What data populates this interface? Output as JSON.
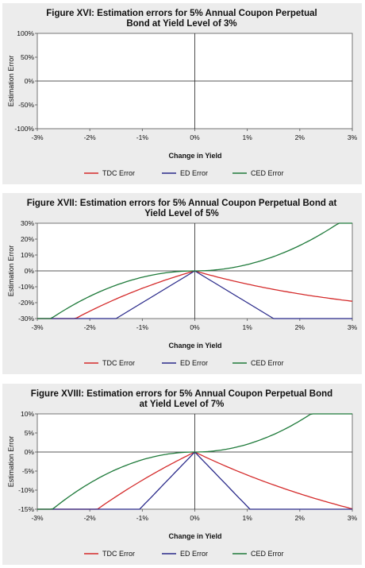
{
  "chart_data": [
    {
      "type": "line",
      "title_lines": [
        "Figure XVI: Estimation errors for 5% Annual Coupon Perpetual",
        "Bond at Yield Level of 3%"
      ],
      "xlabel": "Change in Yield",
      "ylabel": "Estimation Error",
      "x_ticks": [
        "-3%",
        "-2%",
        "-1%",
        "0%",
        "1%",
        "2%",
        "3%"
      ],
      "y_ticks": [
        "100%",
        "50%",
        "0%",
        "-50%",
        "-100%"
      ],
      "xlim": [
        -3,
        3
      ],
      "ylim": [
        -100,
        100
      ],
      "yield_level": 3,
      "x": [
        -3,
        -2.75,
        -2.5,
        -2.25,
        -2,
        -1.75,
        -1.5,
        -1.25,
        -1,
        -0.75,
        -0.5,
        -0.25,
        0,
        0.25,
        0.5,
        0.75,
        1,
        1.25,
        1.5,
        1.75,
        2,
        2.25,
        2.5,
        2.75,
        3
      ],
      "series": [
        {
          "name": "TDC Error",
          "color": "#d42a2a"
        },
        {
          "name": "ED Error",
          "color": "#2a2a8a"
        },
        {
          "name": "CED Error",
          "color": "#1e7a3a"
        }
      ]
    },
    {
      "type": "line",
      "title_lines": [
        "Figure XVII: Estimation errors for 5% Annual Coupon Perpetual Bond at",
        "Yield Level of 5%"
      ],
      "xlabel": "Change in Yield",
      "ylabel": "Estimation Error",
      "x_ticks": [
        "-3%",
        "-2%",
        "-1%",
        "0%",
        "1%",
        "2%",
        "3%"
      ],
      "y_ticks": [
        "30%",
        "20%",
        "10%",
        "0%",
        "-10%",
        "-20%",
        "-30%"
      ],
      "xlim": [
        -3,
        3
      ],
      "ylim": [
        -30,
        30
      ],
      "yield_level": 5,
      "x": [
        -3,
        -2.75,
        -2.5,
        -2.25,
        -2,
        -1.75,
        -1.5,
        -1.25,
        -1,
        -0.75,
        -0.5,
        -0.25,
        0,
        0.25,
        0.5,
        0.75,
        1,
        1.25,
        1.5,
        1.75,
        2,
        2.25,
        2.5,
        2.75,
        3
      ],
      "series": [
        {
          "name": "TDC Error",
          "color": "#d42a2a"
        },
        {
          "name": "ED Error",
          "color": "#2a2a8a"
        },
        {
          "name": "CED Error",
          "color": "#1e7a3a"
        }
      ]
    },
    {
      "type": "line",
      "title_lines": [
        "Figure XVIII: Estimation errors for 5% Annual Coupon Perpetual Bond",
        "at Yield Level of 7%"
      ],
      "xlabel": "Change in Yield",
      "ylabel": "Estimation Error",
      "x_ticks": [
        "-3%",
        "-2%",
        "-1%",
        "0%",
        "1%",
        "2%",
        "3%"
      ],
      "y_ticks": [
        "10%",
        "5%",
        "0%",
        "-5%",
        "-10%",
        "-15%"
      ],
      "xlim": [
        -3,
        3
      ],
      "ylim": [
        -15,
        10
      ],
      "yield_level": 7,
      "x": [
        -3,
        -2.75,
        -2.5,
        -2.25,
        -2,
        -1.75,
        -1.5,
        -1.25,
        -1,
        -0.75,
        -0.5,
        -0.25,
        0,
        0.25,
        0.5,
        0.75,
        1,
        1.25,
        1.5,
        1.75,
        2,
        2.25,
        2.5,
        2.75,
        3
      ],
      "series": [
        {
          "name": "TDC Error",
          "color": "#d42a2a"
        },
        {
          "name": "ED Error",
          "color": "#2a2a8a"
        },
        {
          "name": "CED Error",
          "color": "#1e7a3a"
        }
      ]
    }
  ]
}
